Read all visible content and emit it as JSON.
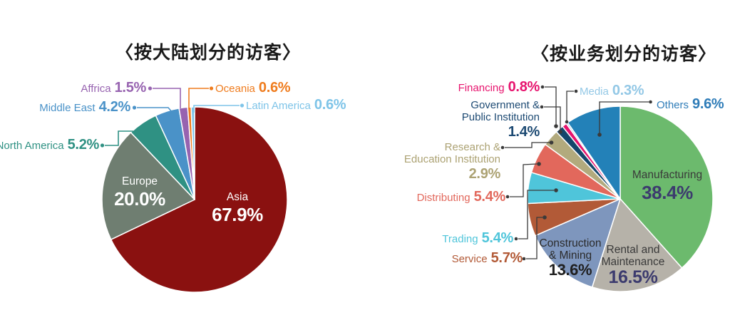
{
  "chart_data": [
    {
      "type": "pie",
      "title": "〈按大陆划分的访客〉",
      "start_angle_deg": 0,
      "direction": "clockwise",
      "legend_position": "callout-labels",
      "grid": false,
      "slices": [
        {
          "label": "Asia",
          "value": 67.9,
          "display": "67.9%",
          "color": "#8A1110",
          "text_color": "#FFFFFF"
        },
        {
          "label": "Europe",
          "value": 20.0,
          "display": "20.0%",
          "color": "#6F7E71",
          "text_color": "#FFFFFF"
        },
        {
          "label": "North America",
          "value": 5.2,
          "display": "5.2%",
          "color": "#2F9183"
        },
        {
          "label": "Middle East",
          "value": 4.2,
          "display": "4.2%",
          "color": "#4A92C8"
        },
        {
          "label": "Affrica",
          "value": 1.5,
          "display": "1.5%",
          "color": "#9763B0"
        },
        {
          "label": "Oceania",
          "value": 0.6,
          "display": "0.6%",
          "color": "#EF7C1E"
        },
        {
          "label": "Latin America",
          "value": 0.6,
          "display": "0.6%",
          "color": "#7EC4E8"
        }
      ]
    },
    {
      "type": "pie",
      "title": "〈按业务划分的访客〉",
      "start_angle_deg": 0,
      "direction": "clockwise",
      "legend_position": "callout-labels",
      "grid": false,
      "leader_color": "#3A3A3A",
      "slices": [
        {
          "label": "Manufacturing",
          "value": 38.4,
          "display": "38.4%",
          "color": "#6CBA6D",
          "name_color": "#3A3A3A",
          "pct_color": "#3C3B6E"
        },
        {
          "label": "Rental and Maintenance",
          "lines": [
            "Rental and",
            "Maintenance"
          ],
          "value": 16.5,
          "display": "16.5%",
          "color": "#B6B2A9",
          "name_color": "#3A3A3A",
          "pct_color": "#3C3B6E"
        },
        {
          "label": "Construction & Mining",
          "lines": [
            "Construction",
            "& Mining"
          ],
          "value": 13.6,
          "display": "13.6%",
          "color": "#7E96BD",
          "name_color": "#2B2B2B",
          "pct_color": "#1F1F1F"
        },
        {
          "label": "Service",
          "value": 5.7,
          "display": "5.7%",
          "color": "#B25A37"
        },
        {
          "label": "Trading",
          "value": 5.4,
          "display": "5.4%",
          "color": "#4FC5DA"
        },
        {
          "label": "Distributing",
          "value": 5.4,
          "display": "5.4%",
          "color": "#E2685C"
        },
        {
          "label": "Research & Education Institution",
          "lines": [
            "Research &",
            "Education Institution"
          ],
          "value": 2.9,
          "display": "2.9%",
          "color": "#B2AA7D",
          "label_color": "#ACA273"
        },
        {
          "label": "Government & Public Institution",
          "lines": [
            "Government &",
            "Public Institution"
          ],
          "value": 1.4,
          "display": "1.4%",
          "color": "#15466B",
          "label_color": "#1D4A73"
        },
        {
          "label": "Financing",
          "value": 0.8,
          "display": "0.8%",
          "color": "#E7146E"
        },
        {
          "label": "Media",
          "value": 0.3,
          "display": "0.3%",
          "color": "#A6D3EA",
          "label_color": "#93C8E6"
        },
        {
          "label": "Others",
          "value": 9.6,
          "display": "9.6%",
          "color": "#2381B8",
          "label_color": "#2E7CB8"
        }
      ]
    }
  ]
}
